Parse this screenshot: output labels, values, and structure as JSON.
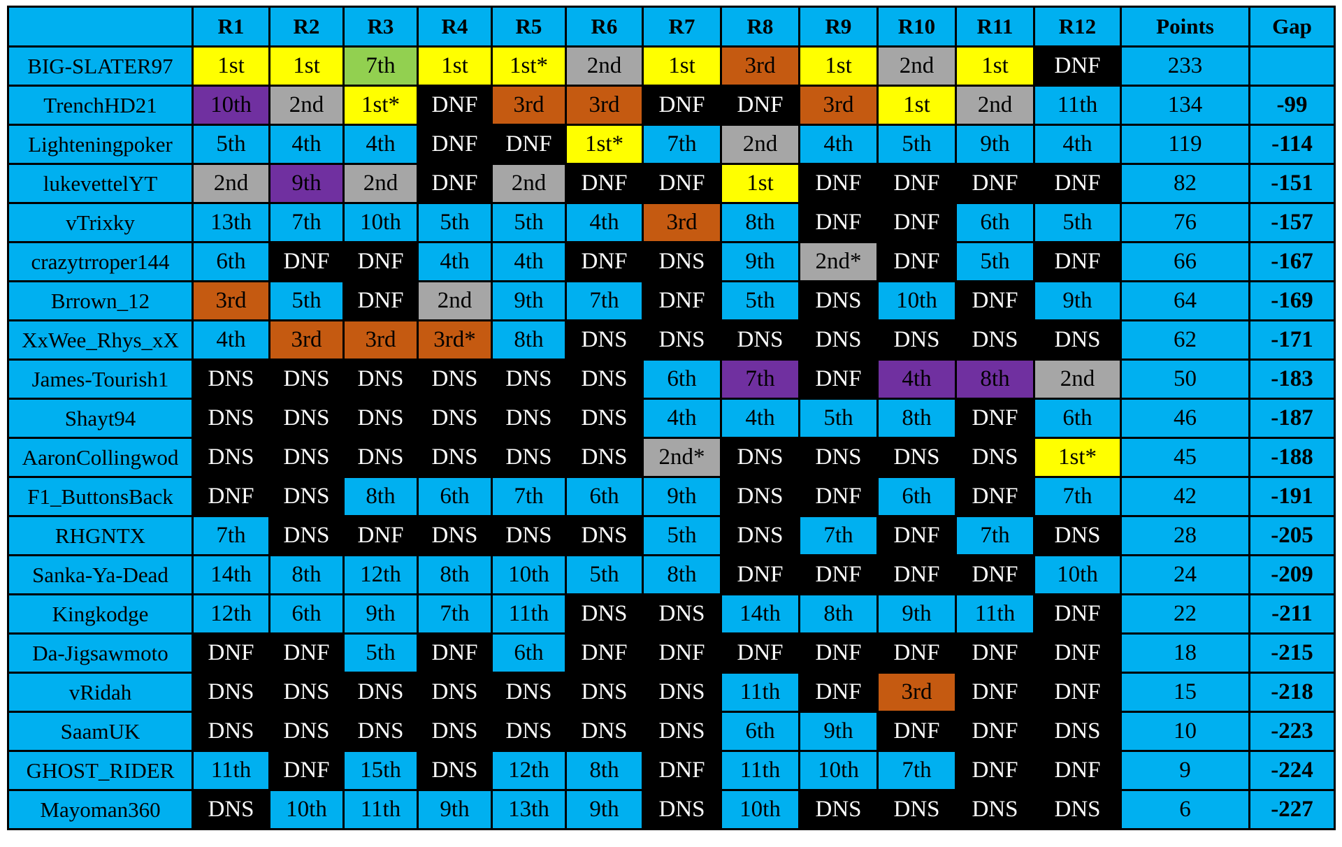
{
  "palette": {
    "base": "#00b0f0",
    "first": "#ffff00",
    "second": "#a6a6a6",
    "third": "#c55a11",
    "seventh_highlight": "#92d050",
    "purple": "#7030a0",
    "out": "#000000"
  },
  "chart_data": {
    "type": "table",
    "columns": [
      "",
      "R1",
      "R2",
      "R3",
      "R4",
      "R5",
      "R6",
      "R7",
      "R8",
      "R9",
      "R10",
      "R11",
      "R12",
      "Points",
      "Gap"
    ],
    "rows": [
      {
        "driver": "BIG-SLATER97",
        "results": [
          "1st",
          "1st",
          "7th",
          "1st",
          "1st*",
          "2nd",
          "1st",
          "3rd",
          "1st",
          "2nd",
          "1st",
          "DNF"
        ],
        "colors": [
          "first",
          "first",
          "seventh_highlight",
          "first",
          "first",
          "second",
          "first",
          "third",
          "first",
          "second",
          "first",
          "out"
        ],
        "points": "233",
        "gap": ""
      },
      {
        "driver": "TrenchHD21",
        "results": [
          "10th",
          "2nd",
          "1st*",
          "DNF",
          "3rd",
          "3rd",
          "DNF",
          "DNF",
          "3rd",
          "1st",
          "2nd",
          "11th"
        ],
        "colors": [
          "purple",
          "second",
          "first",
          "out",
          "third",
          "third",
          "out",
          "out",
          "third",
          "first",
          "second",
          "base"
        ],
        "points": "134",
        "gap": "-99"
      },
      {
        "driver": "Lighteningpoker",
        "results": [
          "5th",
          "4th",
          "4th",
          "DNF",
          "DNF",
          "1st*",
          "7th",
          "2nd",
          "4th",
          "5th",
          "9th",
          "4th"
        ],
        "colors": [
          "base",
          "base",
          "base",
          "out",
          "out",
          "first",
          "base",
          "second",
          "base",
          "base",
          "base",
          "base"
        ],
        "points": "119",
        "gap": "-114"
      },
      {
        "driver": "lukevettelYT",
        "results": [
          "2nd",
          "9th",
          "2nd",
          "DNF",
          "2nd",
          "DNF",
          "DNF",
          "1st",
          "DNF",
          "DNF",
          "DNF",
          "DNF"
        ],
        "colors": [
          "second",
          "purple",
          "second",
          "out",
          "second",
          "out",
          "out",
          "first",
          "out",
          "out",
          "out",
          "out"
        ],
        "points": "82",
        "gap": "-151"
      },
      {
        "driver": "vTrixky",
        "results": [
          "13th",
          "7th",
          "10th",
          "5th",
          "5th",
          "4th",
          "3rd",
          "8th",
          "DNF",
          "DNF",
          "6th",
          "5th"
        ],
        "colors": [
          "base",
          "base",
          "base",
          "base",
          "base",
          "base",
          "third",
          "base",
          "out",
          "out",
          "base",
          "base"
        ],
        "points": "76",
        "gap": "-157"
      },
      {
        "driver": "crazytrroper144",
        "results": [
          "6th",
          "DNF",
          "DNF",
          "4th",
          "4th",
          "DNF",
          "DNS",
          "9th",
          "2nd*",
          "DNF",
          "5th",
          "DNF"
        ],
        "colors": [
          "base",
          "out",
          "out",
          "base",
          "base",
          "out",
          "out",
          "base",
          "second",
          "out",
          "base",
          "out"
        ],
        "points": "66",
        "gap": "-167"
      },
      {
        "driver": "Brrown_12",
        "results": [
          "3rd",
          "5th",
          "DNF",
          "2nd",
          "9th",
          "7th",
          "DNF",
          "5th",
          "DNS",
          "10th",
          "DNF",
          "9th"
        ],
        "colors": [
          "third",
          "base",
          "out",
          "second",
          "base",
          "base",
          "out",
          "base",
          "out",
          "base",
          "out",
          "base"
        ],
        "points": "64",
        "gap": "-169"
      },
      {
        "driver": "XxWee_Rhys_xX",
        "results": [
          "4th",
          "3rd",
          "3rd",
          "3rd*",
          "8th",
          "DNS",
          "DNS",
          "DNS",
          "DNS",
          "DNS",
          "DNS",
          "DNS"
        ],
        "colors": [
          "base",
          "third",
          "third",
          "third",
          "base",
          "out",
          "out",
          "out",
          "out",
          "out",
          "out",
          "out"
        ],
        "points": "62",
        "gap": "-171"
      },
      {
        "driver": "James-Tourish1",
        "results": [
          "DNS",
          "DNS",
          "DNS",
          "DNS",
          "DNS",
          "DNS",
          "6th",
          "7th",
          "DNF",
          "4th",
          "8th",
          "2nd"
        ],
        "colors": [
          "out",
          "out",
          "out",
          "out",
          "out",
          "out",
          "base",
          "purple",
          "out",
          "purple",
          "purple",
          "second"
        ],
        "points": "50",
        "gap": "-183"
      },
      {
        "driver": "Shayt94",
        "results": [
          "DNS",
          "DNS",
          "DNS",
          "DNS",
          "DNS",
          "DNS",
          "4th",
          "4th",
          "5th",
          "8th",
          "DNF",
          "6th"
        ],
        "colors": [
          "out",
          "out",
          "out",
          "out",
          "out",
          "out",
          "base",
          "base",
          "base",
          "base",
          "out",
          "base"
        ],
        "points": "46",
        "gap": "-187"
      },
      {
        "driver": "AaronCollingwod",
        "results": [
          "DNS",
          "DNS",
          "DNS",
          "DNS",
          "DNS",
          "DNS",
          "2nd*",
          "DNS",
          "DNS",
          "DNS",
          "DNS",
          "1st*"
        ],
        "colors": [
          "out",
          "out",
          "out",
          "out",
          "out",
          "out",
          "second",
          "out",
          "out",
          "out",
          "out",
          "first"
        ],
        "points": "45",
        "gap": "-188"
      },
      {
        "driver": "F1_ButtonsBack",
        "results": [
          "DNF",
          "DNS",
          "8th",
          "6th",
          "7th",
          "6th",
          "9th",
          "DNS",
          "DNF",
          "6th",
          "DNF",
          "7th"
        ],
        "colors": [
          "out",
          "out",
          "base",
          "base",
          "base",
          "base",
          "base",
          "out",
          "out",
          "base",
          "out",
          "base"
        ],
        "points": "42",
        "gap": "-191"
      },
      {
        "driver": "RHGNTX",
        "results": [
          "7th",
          "DNS",
          "DNF",
          "DNS",
          "DNS",
          "DNS",
          "5th",
          "DNS",
          "7th",
          "DNF",
          "7th",
          "DNS"
        ],
        "colors": [
          "base",
          "out",
          "out",
          "out",
          "out",
          "out",
          "base",
          "out",
          "base",
          "out",
          "base",
          "out"
        ],
        "points": "28",
        "gap": "-205"
      },
      {
        "driver": "Sanka-Ya-Dead",
        "results": [
          "14th",
          "8th",
          "12th",
          "8th",
          "10th",
          "5th",
          "8th",
          "DNF",
          "DNF",
          "DNF",
          "DNF",
          "10th"
        ],
        "colors": [
          "base",
          "base",
          "base",
          "base",
          "base",
          "base",
          "base",
          "out",
          "out",
          "out",
          "out",
          "base"
        ],
        "points": "24",
        "gap": "-209"
      },
      {
        "driver": "Kingkodge",
        "results": [
          "12th",
          "6th",
          "9th",
          "7th",
          "11th",
          "DNS",
          "DNS",
          "14th",
          "8th",
          "9th",
          "11th",
          "DNF"
        ],
        "colors": [
          "base",
          "base",
          "base",
          "base",
          "base",
          "out",
          "out",
          "base",
          "base",
          "base",
          "base",
          "out"
        ],
        "points": "22",
        "gap": "-211"
      },
      {
        "driver": "Da-Jigsawmoto",
        "results": [
          "DNF",
          "DNF",
          "5th",
          "DNF",
          "6th",
          "DNF",
          "DNF",
          "DNF",
          "DNF",
          "DNF",
          "DNF",
          "DNF"
        ],
        "colors": [
          "out",
          "out",
          "base",
          "out",
          "base",
          "out",
          "out",
          "out",
          "out",
          "out",
          "out",
          "out"
        ],
        "points": "18",
        "gap": "-215"
      },
      {
        "driver": "vRidah",
        "results": [
          "DNS",
          "DNS",
          "DNS",
          "DNS",
          "DNS",
          "DNS",
          "DNS",
          "11th",
          "DNF",
          "3rd",
          "DNF",
          "DNF"
        ],
        "colors": [
          "out",
          "out",
          "out",
          "out",
          "out",
          "out",
          "out",
          "base",
          "out",
          "third",
          "out",
          "out"
        ],
        "points": "15",
        "gap": "-218"
      },
      {
        "driver": "SaamUK",
        "results": [
          "DNS",
          "DNS",
          "DNS",
          "DNS",
          "DNS",
          "DNS",
          "DNS",
          "6th",
          "9th",
          "DNF",
          "DNF",
          "DNS"
        ],
        "colors": [
          "out",
          "out",
          "out",
          "out",
          "out",
          "out",
          "out",
          "base",
          "base",
          "out",
          "out",
          "out"
        ],
        "points": "10",
        "gap": "-223"
      },
      {
        "driver": "GHOST_RIDER",
        "results": [
          "11th",
          "DNF",
          "15th",
          "DNS",
          "12th",
          "8th",
          "DNF",
          "11th",
          "10th",
          "7th",
          "DNF",
          "DNF"
        ],
        "colors": [
          "base",
          "out",
          "base",
          "out",
          "base",
          "base",
          "out",
          "base",
          "base",
          "base",
          "out",
          "out"
        ],
        "points": "9",
        "gap": "-224"
      },
      {
        "driver": "Mayoman360",
        "results": [
          "DNS",
          "10th",
          "11th",
          "9th",
          "13th",
          "9th",
          "DNS",
          "10th",
          "DNS",
          "DNS",
          "DNS",
          "DNS"
        ],
        "colors": [
          "out",
          "base",
          "base",
          "base",
          "base",
          "base",
          "out",
          "base",
          "out",
          "out",
          "out",
          "out"
        ],
        "points": "6",
        "gap": "-227"
      }
    ]
  }
}
